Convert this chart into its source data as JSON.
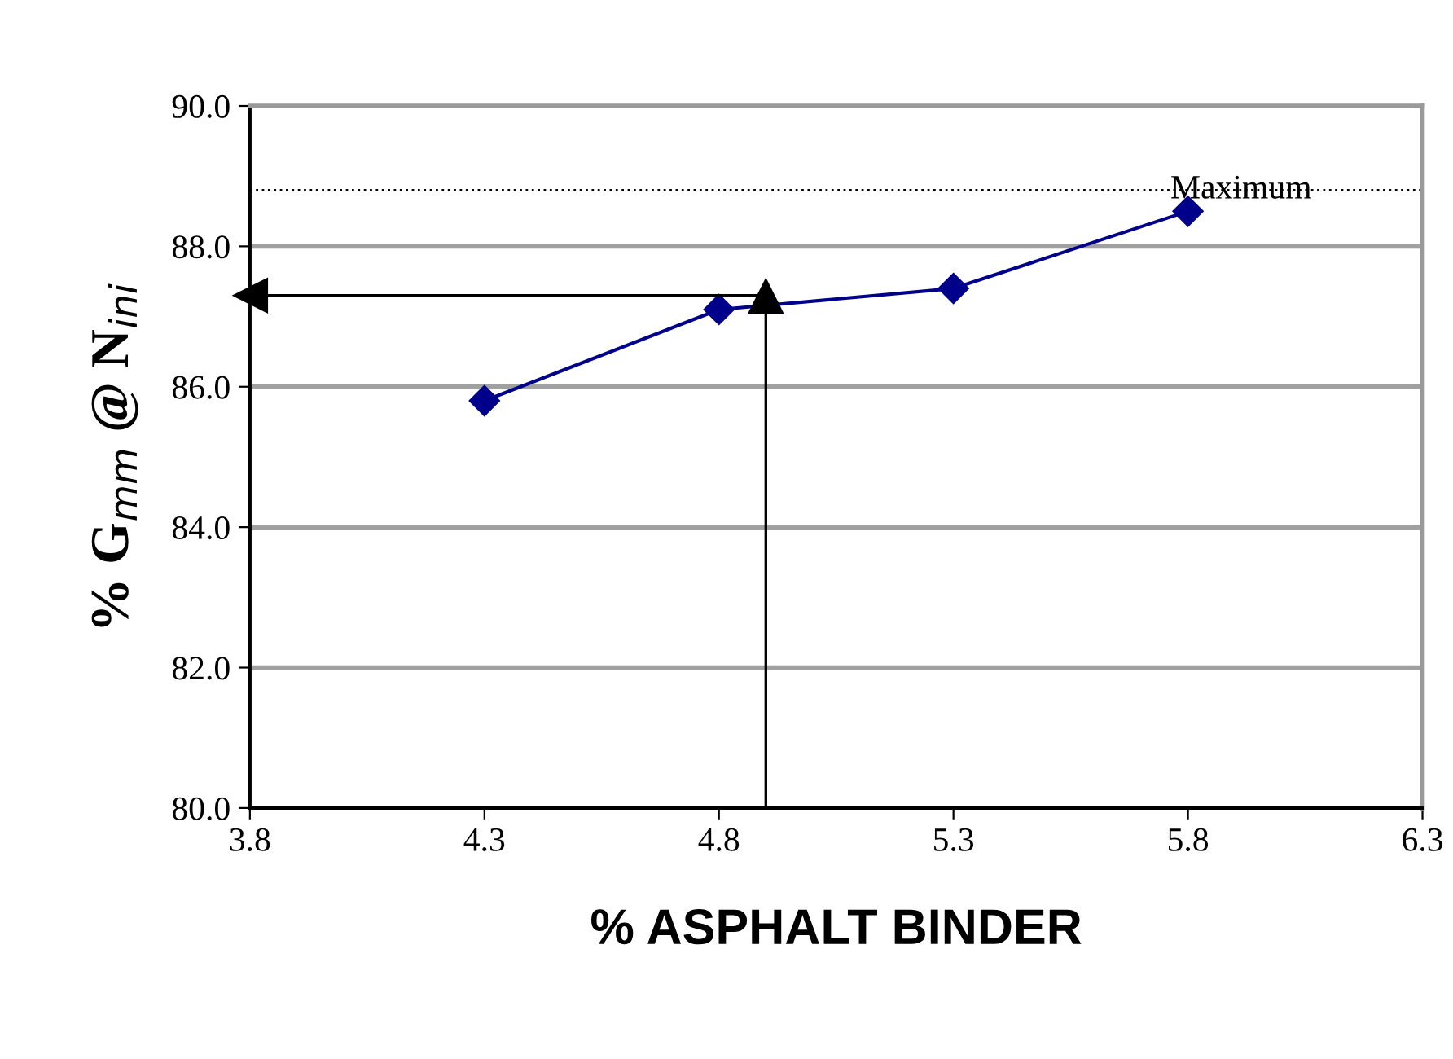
{
  "chart_data": {
    "type": "line",
    "xlabel": "% ASPHALT BINDER",
    "ylabel": "% G$_{mm}$ @ N$_{ini}$",
    "x": [
      4.3,
      4.8,
      5.3,
      5.8
    ],
    "series": [
      {
        "color": "#00008b",
        "values": [
          85.8,
          87.1,
          87.4,
          88.5
        ]
      }
    ],
    "marker": "diamond",
    "line_style": "solid",
    "xlim": [
      3.8,
      6.3
    ],
    "xticks": [
      3.8,
      4.3,
      4.8,
      5.3,
      5.8,
      6.3
    ],
    "ylim": [
      80.0,
      90.0
    ],
    "yticks": [
      {
        "value": 80,
        "label": "80.0"
      },
      {
        "value": 82,
        "label": "82.0"
      },
      {
        "value": 84,
        "label": "84.0"
      },
      {
        "value": 86,
        "label": "86.0"
      },
      {
        "value": 88,
        "label": "88.0"
      },
      {
        "value": 90,
        "label": "90.0"
      }
    ],
    "grid": "y",
    "ref_lines": [
      {
        "axis": "y",
        "value": 88.8,
        "label": "Maximum",
        "color": "#000000",
        "line_style": "dotted"
      },
      {
        "axis": "x",
        "value": 4.9,
        "color": "#000000",
        "line_style": "solid"
      },
      {
        "axis": "y",
        "value": 87.3,
        "color": "#000000",
        "line_style": "solid"
      }
    ]
  }
}
